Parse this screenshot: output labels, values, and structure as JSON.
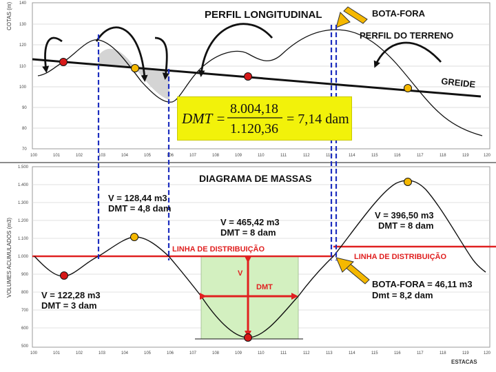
{
  "top_panel": {
    "title": "PERFIL LONGITUDINAL",
    "y_axis_label": "COTAS (m)",
    "y_ticks": [
      "140",
      "130",
      "120",
      "110",
      "100",
      "90",
      "80",
      "70"
    ],
    "x_ticks": [
      "100",
      "101",
      "102",
      "103",
      "104",
      "105",
      "106",
      "107",
      "108",
      "109",
      "110",
      "111",
      "112",
      "113",
      "114",
      "115",
      "116",
      "117",
      "118",
      "119",
      "120"
    ],
    "labels": {
      "bota_fora": "BOTA-FORA",
      "perfil_terreno": "PERFIL DO TERRENO",
      "greide": "GREIDE"
    }
  },
  "formula": {
    "lhs": "DMT =",
    "numerator": "8.004,18",
    "denominator": "1.120,36",
    "result": "= 7,14 dam"
  },
  "bottom_panel": {
    "title": "DIAGRAMA DE MASSAS",
    "y_axis_label": "VOLUMES ACUMULADOS (m3)",
    "y_ticks": [
      "1.500",
      "1.400",
      "1.300",
      "1.200",
      "1.100",
      "1.000",
      "900",
      "800",
      "700",
      "600",
      "500"
    ],
    "x_ticks": [
      "100",
      "101",
      "102",
      "103",
      "104",
      "105",
      "106",
      "107",
      "108",
      "109",
      "110",
      "111",
      "112",
      "113",
      "114",
      "115",
      "116",
      "117",
      "118",
      "119",
      "120"
    ],
    "x_axis_label": "ESTACAS",
    "annotations": {
      "v1": "V = 128,44 m3",
      "dmt1": "DMT = 4,8 dam",
      "v2": "V = 465,42 m3",
      "dmt2": "DMT = 8 dam",
      "v3": "V = 396,50 m3",
      "dmt3": "DMT = 8 dam",
      "v4": "V = 122,28 m3",
      "dmt4": "DMT = 3 dam",
      "linha1": "LINHA DE DISTRIBUIÇÃO",
      "linha2": "LINHA DE DISTRIBUIÇÃO",
      "v_marker": "V",
      "dmt_marker": "DMT",
      "bota_fora": "BOTA-FORA = 46,11 m3",
      "dmt_bota": "Dmt = 8,2 dam"
    }
  },
  "colors": {
    "distribution_line": "#e02020",
    "dashed_line": "#1c2dbf",
    "red_point": "#d71919",
    "orange_point": "#f5b800",
    "shade_grey": "#d4d4d4",
    "shade_green": "#d3f0c0",
    "formula_bg": "#f2f20a"
  }
}
